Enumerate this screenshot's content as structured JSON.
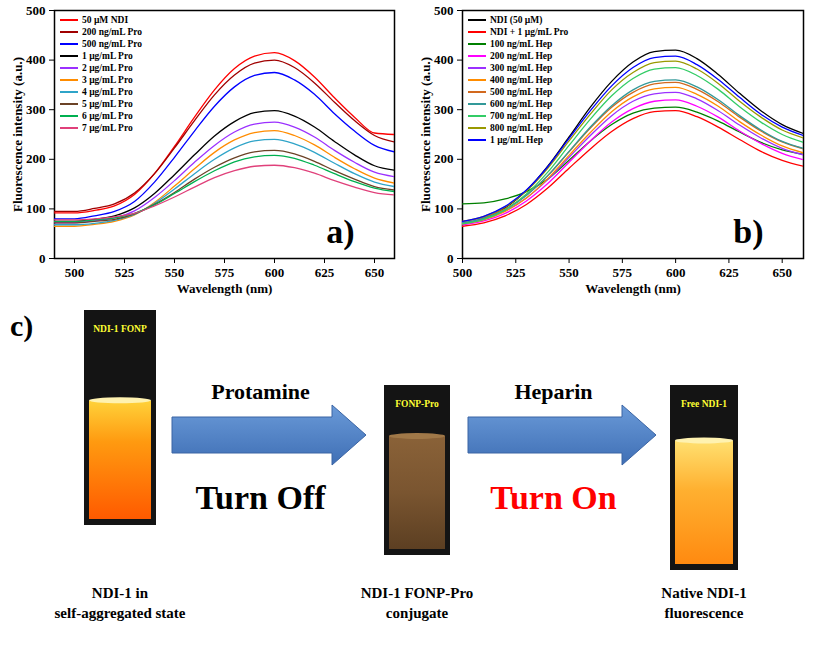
{
  "chart_data": [
    {
      "type": "line",
      "annotations": [
        "a)"
      ],
      "xlabel": "Wavelength (nm)",
      "ylabel": "Fluorescence intensity (a.u.)",
      "x": [
        490,
        500,
        510,
        520,
        530,
        540,
        550,
        560,
        570,
        580,
        590,
        600,
        610,
        620,
        630,
        640,
        650,
        660
      ],
      "series": [
        {
          "name": "50 µM NDI",
          "color": "#ff0000",
          "values": [
            92,
            92,
            97,
            106,
            129,
            171,
            226,
            285,
            340,
            383,
            408,
            415,
            399,
            366,
            324,
            285,
            253,
            250
          ]
        },
        {
          "name": "200 ng/mL Pro",
          "color": "#a00000",
          "values": [
            95,
            95,
            101,
            110,
            132,
            171,
            223,
            278,
            330,
            370,
            394,
            400,
            385,
            354,
            315,
            278,
            248,
            235
          ]
        },
        {
          "name": "500 ng/mL Pro",
          "color": "#0000ff",
          "values": [
            80,
            80,
            86,
            95,
            115,
            154,
            204,
            257,
            307,
            346,
            369,
            375,
            360,
            331,
            292,
            257,
            228,
            215
          ]
        },
        {
          "name": "1 µg/mL Pro",
          "color": "#000000",
          "values": [
            75,
            75,
            79,
            86,
            102,
            131,
            169,
            209,
            247,
            276,
            294,
            298,
            287,
            265,
            236,
            209,
            187,
            178
          ]
        },
        {
          "name": "2 µg/mL Pro",
          "color": "#9b30ff",
          "values": [
            72,
            72,
            76,
            82,
            96,
            123,
            157,
            194,
            228,
            255,
            271,
            275,
            265,
            245,
            218,
            194,
            174,
            165
          ]
        },
        {
          "name": "3 µg/mL Pro",
          "color": "#ff8c00",
          "values": [
            65,
            65,
            69,
            75,
            88,
            113,
            146,
            181,
            214,
            239,
            254,
            258,
            248,
            229,
            204,
            181,
            162,
            152
          ]
        },
        {
          "name": "4 µg/mL Pro",
          "color": "#2fa4c8",
          "values": [
            68,
            68,
            71,
            77,
            89,
            111,
            140,
            171,
            200,
            223,
            237,
            240,
            231,
            214,
            192,
            171,
            154,
            145
          ]
        },
        {
          "name": "5 µg/mL Pro",
          "color": "#6b4226",
          "values": [
            72,
            72,
            75,
            79,
            90,
            109,
            133,
            160,
            184,
            203,
            215,
            218,
            211,
            196,
            177,
            160,
            145,
            138
          ]
        },
        {
          "name": "6 µg/mL Pro",
          "color": "#00b050",
          "values": [
            75,
            75,
            78,
            82,
            91,
            108,
            131,
            155,
            177,
            195,
            205,
            208,
            202,
            188,
            171,
            155,
            142,
            135
          ]
        },
        {
          "name": "7 µg/mL Pro",
          "color": "#e0407a",
          "values": [
            78,
            78,
            80,
            84,
            91,
            106,
            124,
            144,
            163,
            177,
            186,
            188,
            183,
            172,
            157,
            144,
            133,
            128
          ]
        }
      ],
      "xlim": [
        490,
        660
      ],
      "xticks": [
        500,
        525,
        550,
        575,
        600,
        625,
        650
      ],
      "ylim": [
        0,
        500
      ],
      "yticks": [
        0,
        100,
        200,
        300,
        400,
        500
      ],
      "legend": "top-left"
    },
    {
      "type": "line",
      "annotations": [
        "b)"
      ],
      "xlabel": "Wavelength (nm)",
      "ylabel": "Fluorescence intensity (a.u.)",
      "x": [
        500,
        510,
        520,
        530,
        540,
        550,
        560,
        570,
        580,
        590,
        600,
        610,
        620,
        630,
        640,
        650,
        660
      ],
      "series": [
        {
          "name": "NDI (50 µM)",
          "color": "#000000",
          "values": [
            70,
            81,
            102,
            137,
            186,
            245,
            305,
            357,
            396,
            417,
            420,
            403,
            371,
            333,
            298,
            270,
            252
          ]
        },
        {
          "name": "NDI + 1 µg/mL Pro",
          "color": "#ff0000",
          "values": [
            65,
            72,
            86,
            109,
            142,
            182,
            221,
            256,
            282,
            296,
            298,
            286,
            265,
            240,
            216,
            198,
            186
          ]
        },
        {
          "name": "100 ng/mL Hep",
          "color": "#008000",
          "values": [
            110,
            112,
            120,
            135,
            160,
            198,
            237,
            270,
            293,
            303,
            305,
            295,
            277,
            255,
            234,
            219,
            210
          ]
        },
        {
          "name": "200 ng/mL Hep",
          "color": "#ff00ff",
          "values": [
            68,
            76,
            91,
            116,
            151,
            194,
            237,
            275,
            302,
            317,
            320,
            307,
            285,
            257,
            232,
            212,
            199
          ]
        },
        {
          "name": "300 ng/mL Hep",
          "color": "#9b30ff",
          "values": [
            72,
            80,
            96,
            122,
            159,
            204,
            248,
            288,
            317,
            332,
            335,
            322,
            298,
            269,
            243,
            222,
            209
          ]
        },
        {
          "name": "400 ng/mL Hep",
          "color": "#ff8c00",
          "values": [
            70,
            78,
            95,
            122,
            161,
            208,
            254,
            296,
            326,
            342,
            345,
            331,
            307,
            276,
            249,
            227,
            213
          ]
        },
        {
          "name": "500 ng/mL Hep",
          "color": "#d2691e",
          "values": [
            75,
            83,
            100,
            128,
            167,
            215,
            263,
            305,
            335,
            352,
            355,
            341,
            316,
            285,
            257,
            235,
            221
          ]
        },
        {
          "name": "600 ng/mL Hep",
          "color": "#339999",
          "values": [
            72,
            81,
            98,
            127,
            167,
            216,
            265,
            308,
            340,
            357,
            360,
            346,
            320,
            288,
            259,
            236,
            222
          ]
        },
        {
          "name": "700 ng/mL Hep",
          "color": "#33cc66",
          "values": [
            70,
            79,
            98,
            130,
            174,
            228,
            281,
            328,
            363,
            382,
            385,
            369,
            341,
            306,
            275,
            250,
            234
          ]
        },
        {
          "name": "800 ng/mL Hep",
          "color": "#999900",
          "values": [
            75,
            85,
            104,
            136,
            182,
            237,
            291,
            340,
            375,
            395,
            398,
            382,
            353,
            317,
            285,
            259,
            243
          ]
        },
        {
          "name": "1 µg/mL Hep",
          "color": "#0000ff",
          "values": [
            75,
            85,
            105,
            138,
            185,
            242,
            298,
            348,
            385,
            405,
            408,
            391,
            361,
            325,
            291,
            265,
            248
          ]
        }
      ],
      "xlim": [
        500,
        660
      ],
      "xticks": [
        500,
        525,
        550,
        575,
        600,
        625,
        650
      ],
      "ylim": [
        0,
        500
      ],
      "yticks": [
        0,
        100,
        200,
        300,
        400,
        500
      ],
      "legend": "top-left"
    }
  ],
  "diagram": {
    "label": "c)",
    "stages": [
      {
        "vial_label": "NDI-1 FONP",
        "caption": "NDI-1 in self-aggregated state"
      },
      {
        "vial_label": "FONP-Pro",
        "caption": "NDI-1 FONP-Pro conjugate"
      },
      {
        "vial_label": "Free NDI-1",
        "caption": "Native NDI-1 fluorescence"
      }
    ],
    "arrows": [
      {
        "above": "Protamine",
        "below": "Turn Off",
        "color": "#000000"
      },
      {
        "above": "Heparin",
        "below": "Turn On",
        "color": "#ff0000"
      }
    ]
  }
}
